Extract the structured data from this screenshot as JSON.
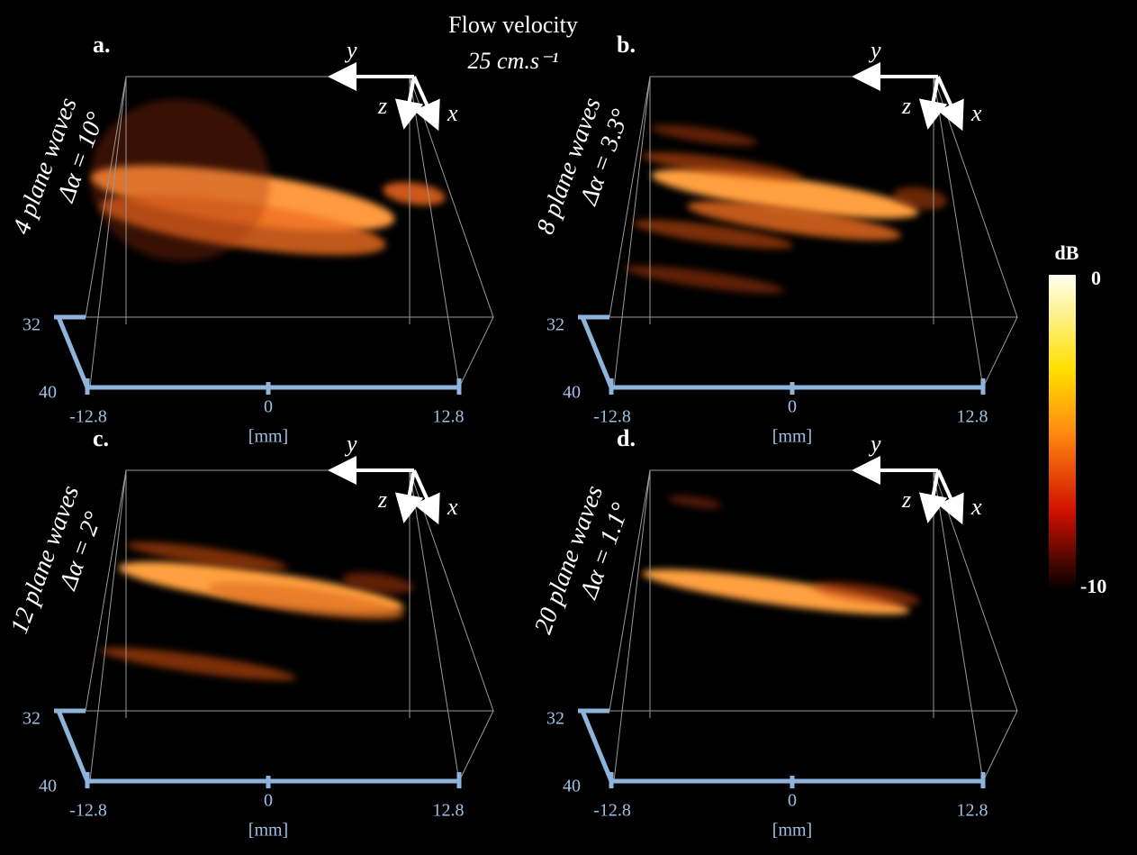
{
  "title": {
    "line1": "Flow velocity",
    "line2": "25 cm.s⁻¹"
  },
  "panels": [
    {
      "label": "a.",
      "waves": "4 plane waves",
      "angle": "Δα = 10°"
    },
    {
      "label": "b.",
      "waves": "8 plane waves",
      "angle": "Δα = 3.3°"
    },
    {
      "label": "c.",
      "waves": "12 plane waves",
      "angle": "Δα = 2°"
    },
    {
      "label": "d.",
      "waves": "20 plane waves",
      "angle": "Δα = 1.1°"
    }
  ],
  "axes": {
    "y": "y⃗",
    "z": "z⃗",
    "x": "x⃗",
    "depth_ticks": [
      "32",
      "40"
    ],
    "lateral_ticks": [
      "-12.8",
      "0",
      "12.8"
    ],
    "unit": "[mm]"
  },
  "colorbar": {
    "label": "dB",
    "top": "0",
    "bottom": "-10"
  }
}
